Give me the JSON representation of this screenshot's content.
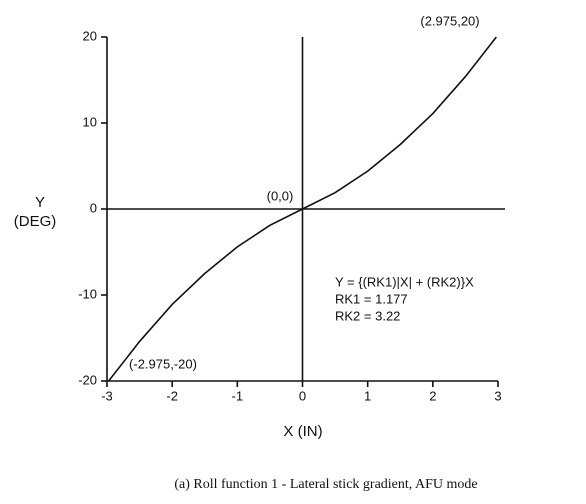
{
  "chart_data": {
    "type": "line",
    "ylabel": [
      "Y",
      "(DEG)"
    ],
    "xlabel": "X (IN)",
    "x": [
      -2.975,
      -2.5,
      -2,
      -1.5,
      -1,
      -0.5,
      0,
      0.5,
      1,
      1.5,
      2,
      2.5,
      2.975
    ],
    "series": [
      {
        "color": "#111111",
        "values": [
          -20,
          -15.4,
          -11.1,
          -7.5,
          -4.4,
          -1.9,
          0,
          1.9,
          4.4,
          7.5,
          11.1,
          15.4,
          20
        ]
      }
    ],
    "xlim": [
      -3,
      3
    ],
    "xticks": [
      -3,
      -2,
      -1,
      0,
      1,
      2,
      3
    ],
    "ylim": [
      -20,
      20
    ],
    "yticks": [
      -20,
      -10,
      0,
      10,
      20
    ],
    "annotations": [
      "(2.975,20)",
      "(0,0)",
      "(-2.975,-20)"
    ],
    "equation": [
      "Y = {(RK1)|X| + (RK2)}X",
      "RK1 = 1.177",
      "RK2 = 3.22"
    ],
    "caption": "(a)  Roll function 1 - Lateral stick gradient, AFU mode"
  }
}
